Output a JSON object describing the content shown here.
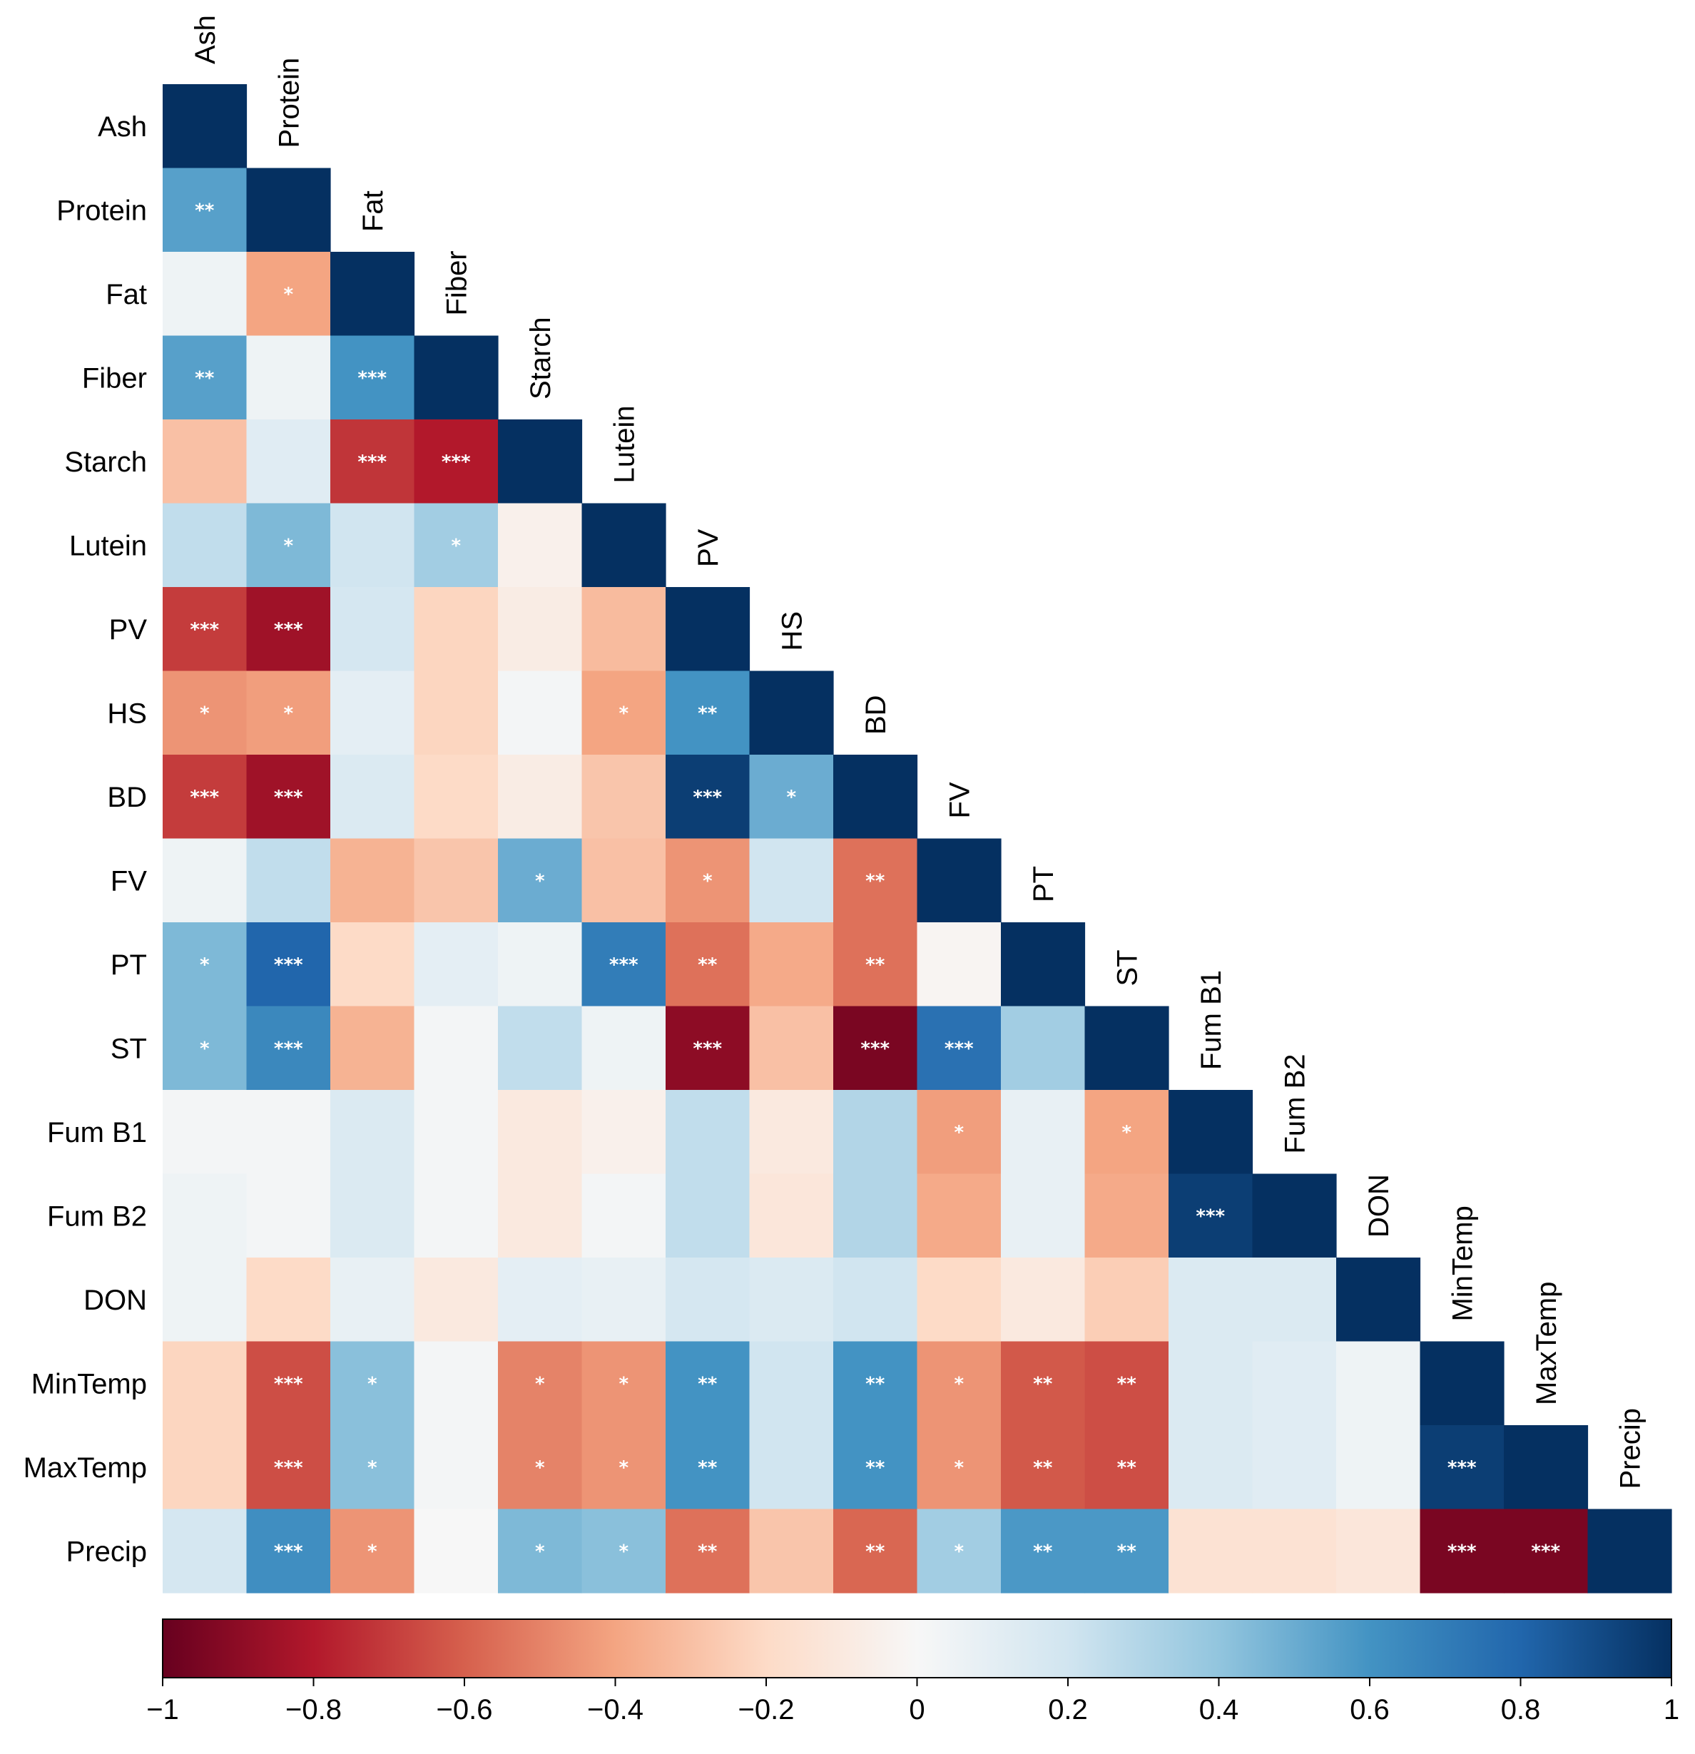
{
  "chart_data": {
    "type": "heatmap",
    "variables": [
      "Ash",
      "Protein",
      "Fat",
      "Fiber",
      "Starch",
      "Lutein",
      "PV",
      "HS",
      "BD",
      "FV",
      "PT",
      "ST",
      "Fum B1",
      "Fum B2",
      "DON",
      "MinTemp",
      "MaxTemp",
      "Precip"
    ],
    "matrix_lower_triangle": [
      [
        1
      ],
      [
        0.55,
        1
      ],
      [
        0.05,
        -0.4,
        1
      ],
      [
        0.55,
        0.05,
        0.6,
        1
      ],
      [
        -0.3,
        0.12,
        -0.72,
        -0.8,
        1
      ],
      [
        0.25,
        0.45,
        0.2,
        0.35,
        -0.05,
        1
      ],
      [
        -0.7,
        -0.85,
        0.18,
        -0.22,
        -0.08,
        -0.32,
        1
      ],
      [
        -0.45,
        -0.42,
        0.1,
        -0.22,
        0.02,
        -0.4,
        0.6,
        1
      ],
      [
        -0.7,
        -0.85,
        0.15,
        -0.2,
        -0.08,
        -0.28,
        0.95,
        0.5,
        1
      ],
      [
        0.05,
        0.25,
        -0.35,
        -0.28,
        0.5,
        -0.3,
        -0.45,
        0.2,
        -0.55,
        1
      ],
      [
        0.45,
        0.8,
        -0.2,
        0.1,
        0.05,
        0.7,
        -0.55,
        -0.38,
        -0.55,
        -0.02,
        1
      ],
      [
        0.45,
        0.65,
        -0.35,
        0.02,
        0.25,
        0.05,
        -0.9,
        -0.3,
        -0.95,
        0.75,
        0.35,
        1
      ],
      [
        0.02,
        0.02,
        0.15,
        0.02,
        -0.1,
        -0.05,
        0.25,
        -0.1,
        0.3,
        -0.42,
        0.08,
        -0.4,
        1
      ],
      [
        0.05,
        0.02,
        0.15,
        0.02,
        -0.1,
        0.02,
        0.25,
        -0.12,
        0.3,
        -0.38,
        0.08,
        -0.38,
        0.95,
        1
      ],
      [
        0.05,
        -0.2,
        0.08,
        -0.1,
        0.1,
        0.08,
        0.18,
        0.15,
        0.2,
        -0.2,
        -0.1,
        -0.25,
        0.15,
        0.15,
        1
      ],
      [
        -0.22,
        -0.65,
        0.42,
        0.02,
        -0.5,
        -0.45,
        0.6,
        0.2,
        0.6,
        -0.45,
        -0.62,
        -0.65,
        0.15,
        0.12,
        0.05,
        1
      ],
      [
        -0.22,
        -0.65,
        0.42,
        0.02,
        -0.5,
        -0.45,
        0.6,
        0.2,
        0.6,
        -0.45,
        -0.62,
        -0.65,
        0.15,
        0.12,
        0.05,
        0.95,
        1
      ],
      [
        0.18,
        0.62,
        -0.45,
        0.0,
        0.45,
        0.42,
        -0.55,
        -0.28,
        -0.58,
        0.35,
        0.58,
        0.58,
        -0.15,
        -0.15,
        -0.12,
        -0.95,
        -0.95,
        1
      ]
    ],
    "significance": [
      [
        ""
      ],
      [
        "**",
        ""
      ],
      [
        "",
        "*",
        ""
      ],
      [
        "**",
        "",
        "***",
        ""
      ],
      [
        "",
        "",
        "***",
        "***",
        ""
      ],
      [
        "",
        "*",
        "",
        "*",
        "",
        ""
      ],
      [
        "***",
        "***",
        "",
        "",
        "",
        "",
        ""
      ],
      [
        "*",
        "*",
        "",
        "",
        "",
        "*",
        "**",
        ""
      ],
      [
        "***",
        "***",
        "",
        "",
        "",
        "",
        "***",
        "*",
        ""
      ],
      [
        "",
        "",
        "",
        "",
        "*",
        "",
        "*",
        "",
        "**",
        ""
      ],
      [
        "*",
        "***",
        "",
        "",
        "",
        "***",
        "**",
        "",
        "**",
        "",
        ""
      ],
      [
        "*",
        "***",
        "",
        "",
        "",
        "",
        "***",
        "",
        "***",
        "***",
        "",
        ""
      ],
      [
        "",
        "",
        "",
        "",
        "",
        "",
        "",
        "",
        "",
        "*",
        "",
        "*",
        ""
      ],
      [
        "",
        "",
        "",
        "",
        "",
        "",
        "",
        "",
        "",
        "",
        "",
        "",
        "***",
        ""
      ],
      [
        "",
        "",
        "",
        "",
        "",
        "",
        "",
        "",
        "",
        "",
        "",
        "",
        "",
        "",
        ""
      ],
      [
        "",
        "***",
        "*",
        "",
        "*",
        "*",
        "**",
        "",
        "**",
        "*",
        "**",
        "**",
        "",
        "",
        "",
        ""
      ],
      [
        "",
        "***",
        "*",
        "",
        "*",
        "*",
        "**",
        "",
        "**",
        "*",
        "**",
        "**",
        "",
        "",
        "",
        "***",
        ""
      ],
      [
        "",
        "***",
        "*",
        "",
        "*",
        "*",
        "**",
        "",
        "**",
        "*",
        "**",
        "**",
        "",
        "",
        "",
        "***",
        "***",
        ""
      ]
    ],
    "colorbar": {
      "range": [
        -1,
        1
      ],
      "ticks": [
        "−1",
        "−0.8",
        "−0.6",
        "−0.4",
        "−0.2",
        "0",
        "0.2",
        "0.4",
        "0.6",
        "0.8",
        "1"
      ],
      "tick_values": [
        -1,
        -0.8,
        -0.6,
        -0.4,
        -0.2,
        0,
        0.2,
        0.4,
        0.6,
        0.8,
        1
      ],
      "colormap": "RdBu",
      "stops": [
        "#67001f",
        "#b2182b",
        "#d6604d",
        "#f4a582",
        "#fddbc7",
        "#f7f7f7",
        "#d1e5f0",
        "#92c5de",
        "#4393c3",
        "#2166ac",
        "#053061"
      ]
    }
  }
}
